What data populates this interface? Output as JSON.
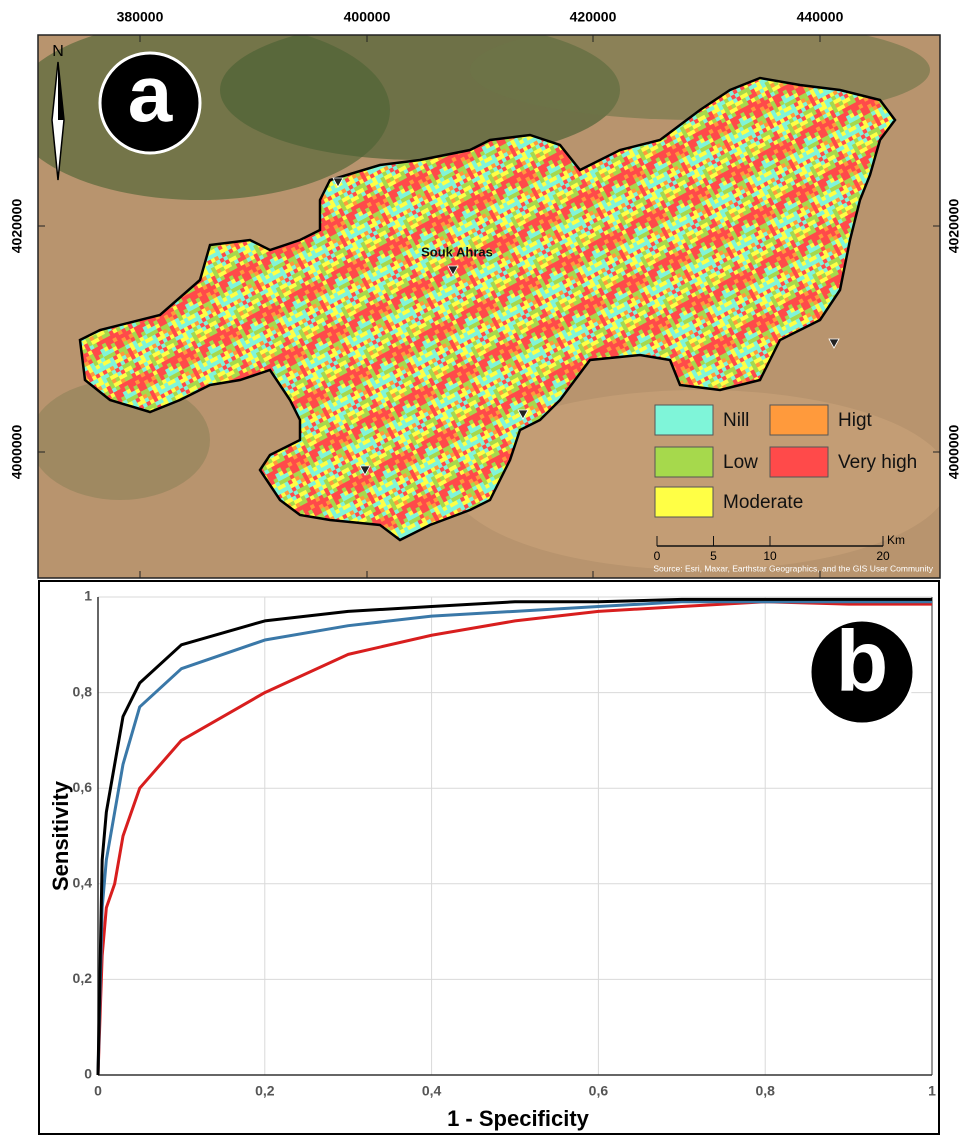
{
  "map": {
    "panel_label": "a",
    "north": "N",
    "place": "Souk Ahras",
    "x_tick_labels": [
      380000,
      400000,
      420000,
      440000
    ],
    "y_tick_labels": [
      4020000,
      4000000
    ],
    "legend": [
      {
        "label": "Nill",
        "color": "#7ff5d9"
      },
      {
        "label": "Higt",
        "color": "#ff9a3c"
      },
      {
        "label": "Low",
        "color": "#a6d94c"
      },
      {
        "label": "Very high",
        "color": "#ff4a4a"
      },
      {
        "label": "Moderate",
        "color": "#ffff45"
      }
    ],
    "scale_bar": {
      "ticks": [
        0,
        5,
        10,
        20
      ],
      "unit": "Km"
    },
    "attribution": "Source: Esri, Maxar, Earthstar Geographics, and the GIS User Community"
  },
  "chart_data": {
    "type": "line",
    "panel_label": "b",
    "x_label": "1 - Specificity",
    "y_label": "Sensitivity",
    "x": [
      0,
      0.005,
      0.01,
      0.02,
      0.03,
      0.05,
      0.1,
      0.2,
      0.3,
      0.4,
      0.5,
      0.6,
      0.7,
      0.8,
      0.9,
      1
    ],
    "series": [
      {
        "color": "#000000",
        "values": [
          0,
          0.45,
          0.55,
          0.65,
          0.75,
          0.82,
          0.9,
          0.95,
          0.97,
          0.98,
          0.99,
          0.99,
          0.995,
          0.995,
          0.995,
          0.995
        ]
      },
      {
        "color": "#3a78a8",
        "values": [
          0,
          0.35,
          0.45,
          0.55,
          0.65,
          0.77,
          0.85,
          0.91,
          0.94,
          0.96,
          0.97,
          0.98,
          0.99,
          0.99,
          0.99,
          0.99
        ]
      },
      {
        "color": "#d81e1e",
        "values": [
          0,
          0.25,
          0.35,
          0.4,
          0.5,
          0.6,
          0.7,
          0.8,
          0.88,
          0.92,
          0.95,
          0.97,
          0.98,
          0.99,
          0.985,
          0.985
        ]
      }
    ],
    "xlim": [
      0,
      1
    ],
    "ylim": [
      0,
      1
    ],
    "xticks": [
      0,
      {
        "value": 0.2,
        "label": "0,2"
      },
      {
        "value": 0.4,
        "label": "0,4"
      },
      {
        "value": 0.6,
        "label": "0,6"
      },
      {
        "value": 0.8,
        "label": "0,8"
      },
      1
    ],
    "yticks": [
      0,
      {
        "value": 0.2,
        "label": "0,2"
      },
      {
        "value": 0.4,
        "label": "0,4"
      },
      {
        "value": 0.6,
        "label": "0,6"
      },
      {
        "value": 0.8,
        "label": "0,8"
      },
      1
    ],
    "grid": true
  }
}
